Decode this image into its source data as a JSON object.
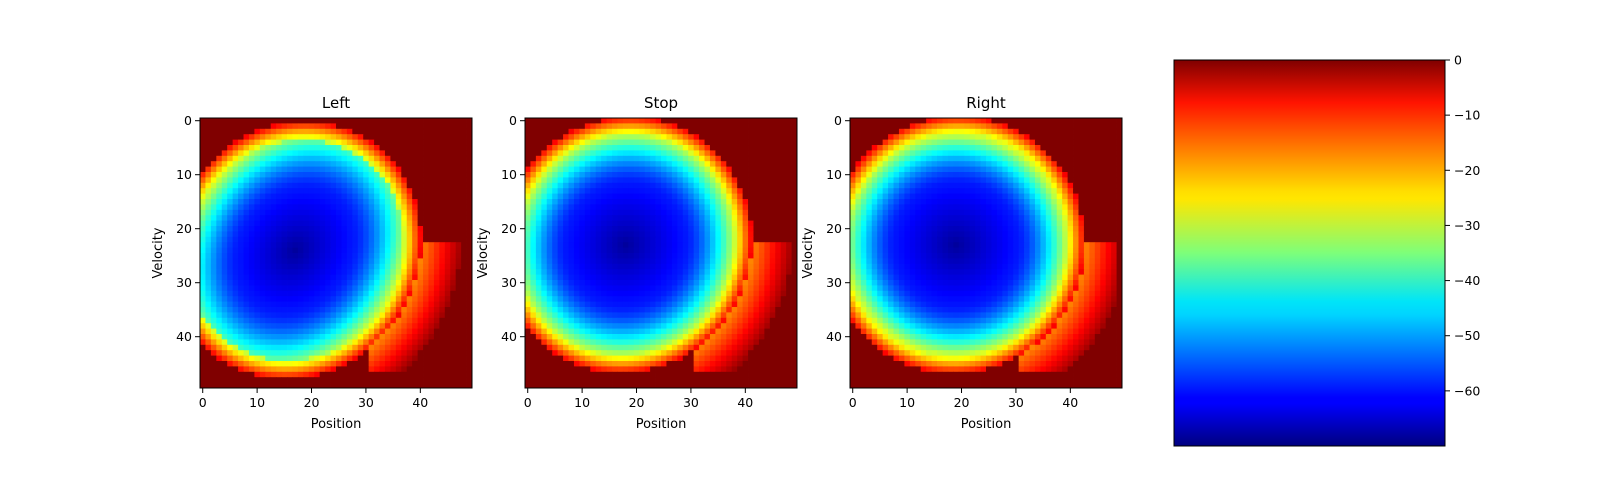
{
  "chart_data": [
    {
      "type": "heatmap",
      "title": "Left",
      "xlabel": "Position",
      "ylabel": "Velocity",
      "xticks": [
        "0",
        "10",
        "20",
        "30",
        "40"
      ],
      "yticks": [
        "0",
        "10",
        "20",
        "30",
        "40"
      ],
      "grid_shape": [
        50,
        50
      ],
      "field": {
        "center": [
          17,
          24
        ],
        "core_rx": 9.5,
        "core_ry": 11.5,
        "outer_rx": 22.5,
        "outer_ry": 24.5,
        "tilt_deg": 35
      },
      "colormap": "jet",
      "grid": false
    },
    {
      "type": "heatmap",
      "title": "Stop",
      "xlabel": "Position",
      "ylabel": "Velocity",
      "xticks": [
        "0",
        "10",
        "20",
        "30",
        "40"
      ],
      "yticks": [
        "0",
        "10",
        "20",
        "30",
        "40"
      ],
      "grid_shape": [
        50,
        50
      ],
      "field": {
        "center": [
          18,
          23
        ],
        "core_rx": 10.5,
        "core_ry": 11,
        "outer_rx": 23,
        "outer_ry": 24,
        "tilt_deg": 30
      },
      "colormap": "jet",
      "grid": false
    },
    {
      "type": "heatmap",
      "title": "Right",
      "xlabel": "Position",
      "ylabel": "Velocity",
      "xticks": [
        "0",
        "10",
        "20",
        "30",
        "40"
      ],
      "yticks": [
        "0",
        "10",
        "20",
        "30",
        "40"
      ],
      "grid_shape": [
        50,
        50
      ],
      "field": {
        "center": [
          19,
          23
        ],
        "core_rx": 11,
        "core_ry": 11,
        "outer_rx": 23.5,
        "outer_ry": 24,
        "tilt_deg": 30
      },
      "colormap": "jet",
      "grid": false
    }
  ],
  "colorbar": {
    "colormap": "jet",
    "range": [
      -70,
      0
    ],
    "ticks": [
      {
        "value": 0,
        "label": "0"
      },
      {
        "value": -10,
        "label": "−10"
      },
      {
        "value": -20,
        "label": "−20"
      },
      {
        "value": -30,
        "label": "−30"
      },
      {
        "value": -40,
        "label": "−40"
      },
      {
        "value": -50,
        "label": "−50"
      },
      {
        "value": -60,
        "label": "−60"
      }
    ]
  }
}
